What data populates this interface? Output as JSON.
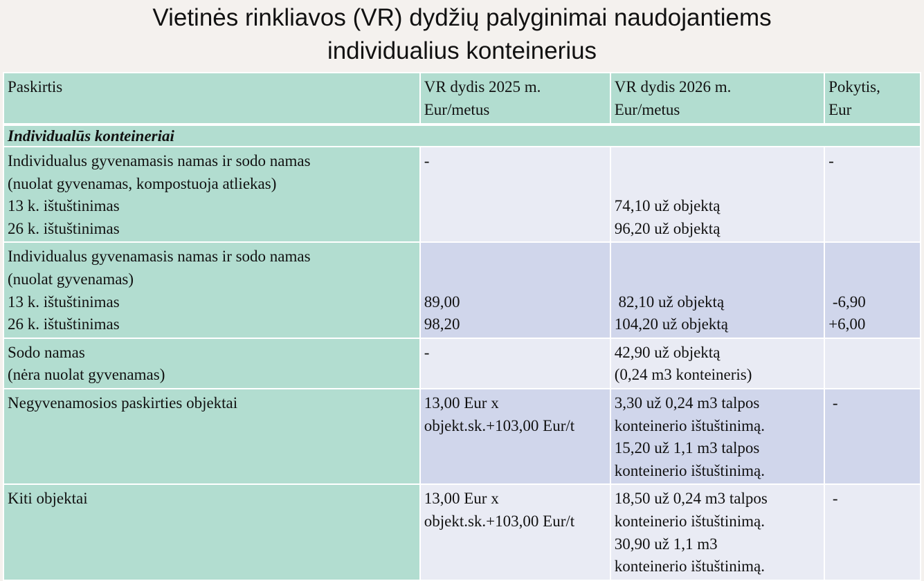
{
  "title": [
    "Vietinės rinkliavos (VR) dydžių palyginimai naudojantiems",
    "individualius konteinerius"
  ],
  "colors": {
    "background": "#f4f1ee",
    "header": "#b2ddd0",
    "row_light": "#e9ebf4",
    "row_dark": "#d0d6eb"
  },
  "table": {
    "headers": [
      [
        "Paskirtis"
      ],
      [
        "VR dydis 2025 m.",
        "Eur/metus"
      ],
      [
        "VR dydis 2026 m.",
        "Eur/metus"
      ],
      [
        "Pokytis,",
        "Eur"
      ]
    ],
    "section": "Individualūs konteineriai",
    "rows": [
      {
        "shade": "light",
        "cells": [
          [
            "Individualus gyvenamasis namas ir sodo namas",
            "(nuolat gyvenamas, kompostuoja atliekas)",
            "13 k. ištuštinimas",
            "26 k. ištuštinimas"
          ],
          [
            "-"
          ],
          [
            "",
            "",
            "74,10 už objektą",
            "96,20 už objektą"
          ],
          [
            "-"
          ]
        ]
      },
      {
        "shade": "dark",
        "cells": [
          [
            "Individualus gyvenamasis namas ir sodo namas",
            "(nuolat gyvenamas)",
            "13 k. ištuštinimas",
            "26 k. ištuštinimas"
          ],
          [
            "",
            "",
            "89,00",
            "98,20"
          ],
          [
            "",
            "",
            " 82,10 už objektą",
            "104,20 už objektą"
          ],
          [
            "",
            "",
            " -6,90",
            "+6,00"
          ]
        ]
      },
      {
        "shade": "light",
        "cells": [
          [
            "Sodo namas",
            "(nėra nuolat gyvenamas)"
          ],
          [
            "-"
          ],
          [
            "42,90 už objektą",
            "(0,24 m3 konteineris)"
          ],
          [
            ""
          ]
        ]
      },
      {
        "shade": "dark",
        "cells": [
          [
            "Negyvenamosios paskirties objektai"
          ],
          [
            "13,00 Eur x",
            "objekt.sk.+103,00 Eur/t"
          ],
          [
            "3,30 už 0,24 m3 talpos",
            "konteinerio ištuštinimą.",
            "15,20 už 1,1 m3 talpos",
            "konteinerio ištuštinimą."
          ],
          [
            " -"
          ]
        ]
      },
      {
        "shade": "light",
        "cells": [
          [
            "Kiti objektai"
          ],
          [
            "13,00 Eur x",
            "objekt.sk.+103,00 Eur/t"
          ],
          [
            "18,50 už 0,24 m3 talpos",
            "konteinerio ištuštinimą.",
            "30,90 už 1,1 m3",
            "konteinerio ištuštinimą."
          ],
          [
            " -"
          ]
        ]
      }
    ]
  }
}
